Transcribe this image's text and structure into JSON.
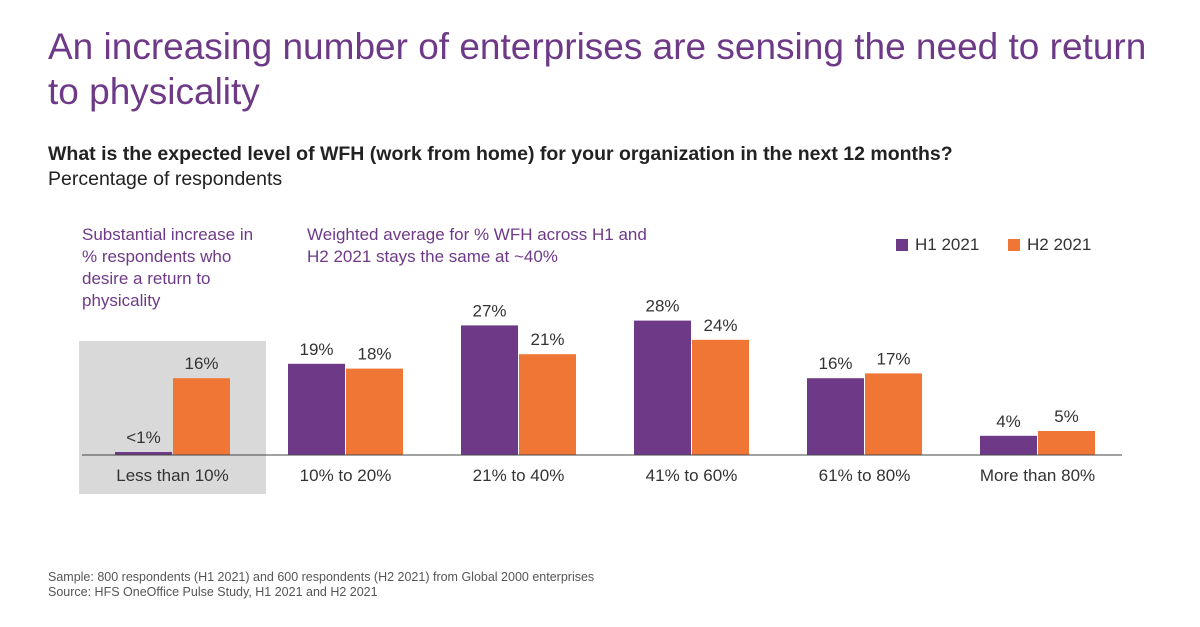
{
  "title": "An increasing number of enterprises are sensing the need to return to physicality",
  "question": "What is the expected level of WFH (work from home) for your organization in the next 12 months?",
  "subquestion": "Percentage of respondents",
  "annotations": {
    "left": "Substantial increase in % respondents who desire a return to physicality",
    "center": "Weighted average for % WFH across H1 and H2 2021 stays the same at ~40%"
  },
  "legend": {
    "h1": "H1 2021",
    "h2": "H2 2021"
  },
  "footer": {
    "sample": "Sample: 800 respondents (H1 2021) and 600 respondents (H2 2021) from Global 2000 enterprises",
    "source": "Source: HFS OneOffice Pulse Study, H1 2021 and H2 2021"
  },
  "colors": {
    "title": "#6e3a87",
    "h1": "#6e3a87",
    "h2": "#f07636",
    "highlight": "#d9d9d9"
  },
  "chart_data": {
    "type": "bar",
    "categories": [
      "Less than 10%",
      "10% to 20%",
      "21% to 40%",
      "41% to 60%",
      "61% to 80%",
      "More than 80%"
    ],
    "series": [
      {
        "name": "H1 2021",
        "values": [
          0.5,
          19,
          27,
          28,
          16,
          4
        ],
        "labels": [
          "<1%",
          "19%",
          "27%",
          "28%",
          "16%",
          "4%"
        ]
      },
      {
        "name": "H2 2021",
        "values": [
          16,
          18,
          21,
          24,
          17,
          5
        ],
        "labels": [
          "16%",
          "18%",
          "21%",
          "24%",
          "17%",
          "5%"
        ]
      }
    ],
    "highlighted_category": "Less than 10%",
    "ylim": [
      0,
      30
    ],
    "legend_position": "top-right",
    "grid": false
  }
}
